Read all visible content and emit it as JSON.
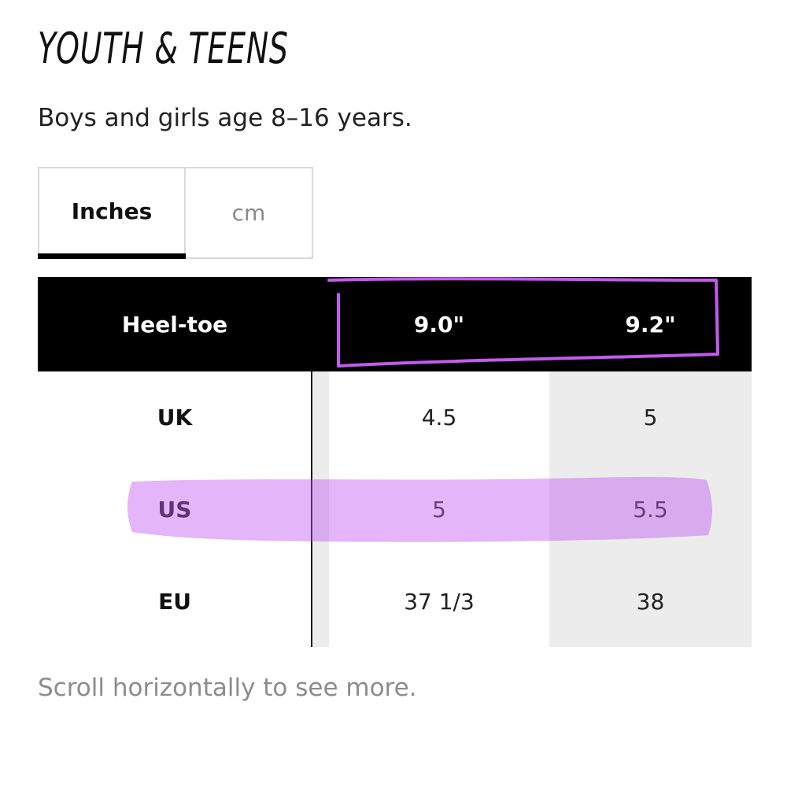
{
  "page": {
    "title": "YOUTH & TEENS",
    "subtitle": "Boys and girls age 8–16 years.",
    "hint": "Scroll horizontally to see more."
  },
  "units": {
    "active": "Inches",
    "inactive": "cm"
  },
  "table": {
    "header": {
      "label": "Heel-toe",
      "values": [
        "9.0\"",
        "9.2\""
      ]
    },
    "rows": [
      {
        "label": "UK",
        "values": [
          "4.5",
          "5"
        ]
      },
      {
        "label": "US",
        "values": [
          "5",
          "5.5"
        ]
      },
      {
        "label": "EU",
        "values": [
          "37 1/3",
          "38"
        ]
      }
    ]
  },
  "colors": {
    "header_bg": "#000000",
    "shaded_column": "#ececec",
    "annotation": "#c45af0"
  }
}
